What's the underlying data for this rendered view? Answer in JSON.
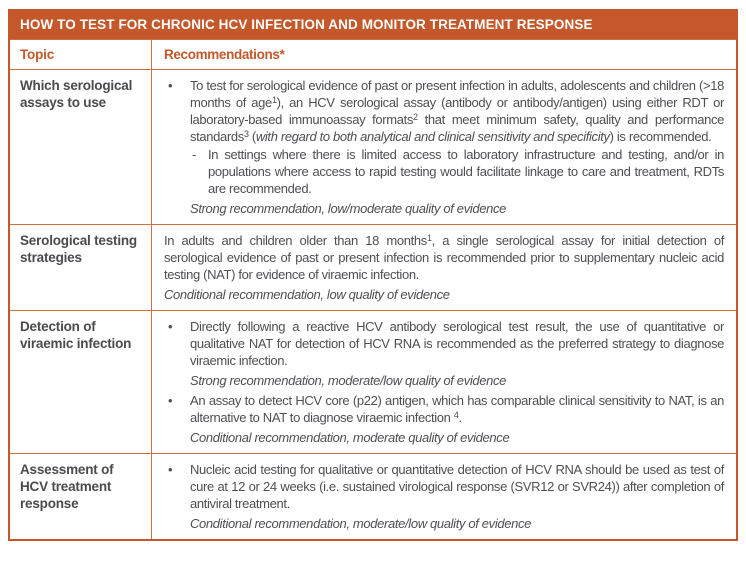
{
  "colors": {
    "accent_orange": "#C4582B",
    "inner_border_orange": "#D0703F",
    "title_text": "#FFFFFF",
    "body_text": "#4E4F53"
  },
  "table": {
    "title": "HOW TO TEST FOR CHRONIC HCV INFECTION AND MONITOR TREATMENT RESPONSE",
    "columns": {
      "topic": "Topic",
      "recommendations": "Recommendations*"
    },
    "markers": {
      "bullet": "•",
      "dash": "-"
    },
    "rows": [
      {
        "topic": "Which serological assays to use",
        "bullet1": {
          "segs": [
            "To test for serological evidence of past or present infection in adults, adolescents and children (>18 months of age",
            "1",
            "), an HCV serological assay (antibody or antibody/antigen) using either RDT or laboratory-based immunoassay formats",
            "2",
            " that meet minimum safety, quality and performance standards",
            "3",
            " (",
            "with regard to both analytical and clinical sensitivity and specificity",
            ") is recommended."
          ]
        },
        "sub_dash": "In settings where there is limited access to laboratory infrastructure and testing, and/or in populations where access to rapid testing would facilitate linkage to care and treatment, RDTs are recommended.",
        "evidence": "Strong recommendation, low/moderate quality of evidence"
      },
      {
        "topic": "Serological testing strategies",
        "para": {
          "segs": [
            "In adults and children older than 18 months",
            "1",
            ", a single serological assay for initial detection of serological evidence of past or present infection is recommended prior to supplementary nucleic acid testing (NAT) for evidence of viraemic infection."
          ]
        },
        "evidence": "Conditional recommendation, low quality of evidence"
      },
      {
        "topic": "Detection of viraemic infection",
        "bullet1": "Directly following a reactive HCV antibody serological test result, the use of quantitative or qualitative NAT for detection of HCV RNA is recommended as the preferred strategy to diagnose viraemic infection.",
        "evidence1": "Strong recommendation, moderate/low quality of evidence",
        "bullet2": {
          "segs": [
            "An assay to detect HCV core (p22) antigen, which has comparable clinical sensitivity to NAT, is an alternative to NAT to diagnose viraemic infection ",
            "4",
            "."
          ]
        },
        "evidence2": "Conditional recommendation, moderate quality of evidence"
      },
      {
        "topic": "Assessment of HCV treatment response",
        "bullet1": "Nucleic acid testing for qualitative or quantitative detection of HCV RNA should be used as test of cure at 12 or 24 weeks (i.e. sustained virological response (SVR12 or SVR24)) after completion of antiviral treatment.",
        "evidence": "Conditional recommendation, moderate/low quality of evidence"
      }
    ]
  }
}
